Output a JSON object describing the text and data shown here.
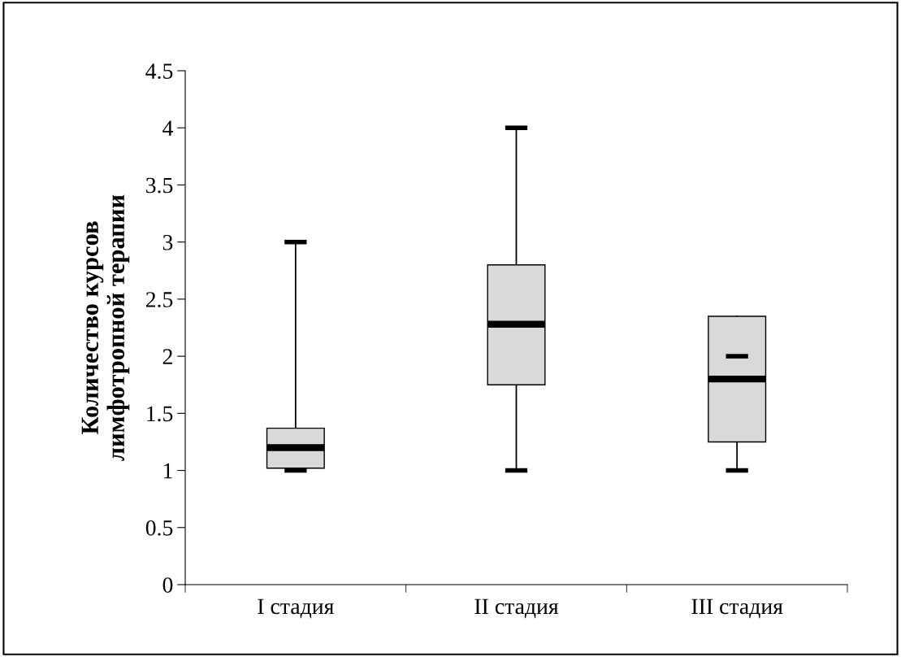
{
  "chart_data": {
    "type": "box",
    "ylabel": "Количество курсов\nлимфотропной терапии",
    "categories": [
      "I стадия",
      "II стадия",
      "III стадия"
    ],
    "boxes": [
      {
        "low": 1,
        "q1": 1.02,
        "median": 1.2,
        "q3": 1.37,
        "high": 3
      },
      {
        "low": 1,
        "q1": 1.75,
        "median": 2.28,
        "q3": 2.8,
        "high": 4
      },
      {
        "low": 1,
        "q1": 1.25,
        "median": 1.8,
        "q3": 2.35,
        "high": 2
      }
    ],
    "color": "#d9d9d9",
    "ylim": [
      0,
      4.5
    ],
    "yticks": [
      0,
      0.5,
      1,
      1.5,
      2,
      2.5,
      3,
      3.5,
      4,
      4.5
    ],
    "grid": false,
    "legend": false
  }
}
